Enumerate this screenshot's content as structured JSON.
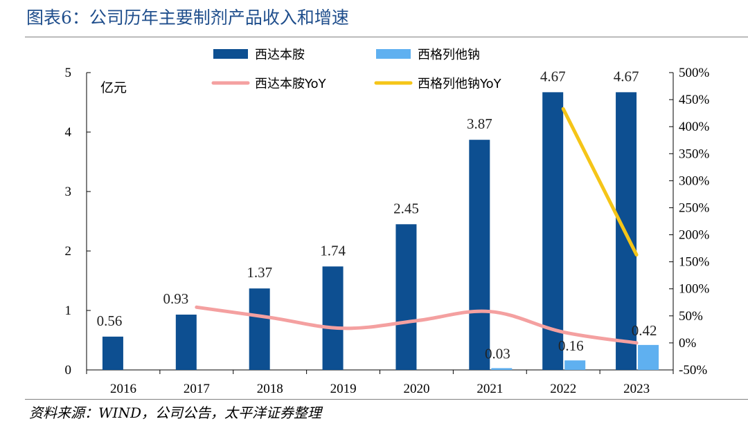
{
  "header": {
    "title": "图表6：公司历年主要制剂产品收入和增速"
  },
  "footer": {
    "source": "资料来源：WIND，公司公告，太平洋证券整理"
  },
  "chart_data": {
    "type": "bar",
    "categories": [
      "2016",
      "2017",
      "2018",
      "2019",
      "2020",
      "2021",
      "2022",
      "2023"
    ],
    "series": [
      {
        "name": "西达本胺",
        "type": "bar",
        "axis": "left",
        "color": "#0d4f91",
        "values": [
          0.56,
          0.93,
          1.37,
          1.74,
          2.45,
          3.87,
          4.67,
          4.67
        ],
        "labels": [
          "0.56",
          "0.93",
          "1.37",
          "1.74",
          "2.45",
          "3.87",
          "4.67",
          "4.67"
        ]
      },
      {
        "name": "西格列他钠",
        "type": "bar",
        "axis": "left",
        "color": "#5fb0f0",
        "values": [
          null,
          null,
          null,
          null,
          null,
          0.03,
          0.16,
          0.42
        ],
        "labels": [
          "",
          "",
          "",
          "",
          "",
          "0.03",
          "0.16",
          "0.42"
        ]
      },
      {
        "name": "西达本胺YoY",
        "type": "line",
        "axis": "right",
        "color": "#f4a0a0",
        "values": [
          null,
          66,
          47,
          27,
          41,
          58,
          20,
          0
        ]
      },
      {
        "name": "西格列他钠YoY",
        "type": "line",
        "axis": "right",
        "color": "#f5c518",
        "values": [
          null,
          null,
          null,
          null,
          null,
          null,
          433,
          163
        ]
      }
    ],
    "y_left": {
      "label": "亿元",
      "min": 0,
      "max": 5,
      "ticks": [
        "0",
        "1",
        "2",
        "3",
        "4",
        "5"
      ]
    },
    "y_right": {
      "min": -50,
      "max": 500,
      "ticks": [
        "-50%",
        "0%",
        "50%",
        "100%",
        "150%",
        "200%",
        "250%",
        "300%",
        "350%",
        "400%",
        "450%",
        "500%"
      ]
    },
    "legend": {
      "position": "top",
      "entries": [
        "西达本胺",
        "西格列他钠",
        "西达本胺YoY",
        "西格列他钠YoY"
      ]
    },
    "grid": false
  }
}
